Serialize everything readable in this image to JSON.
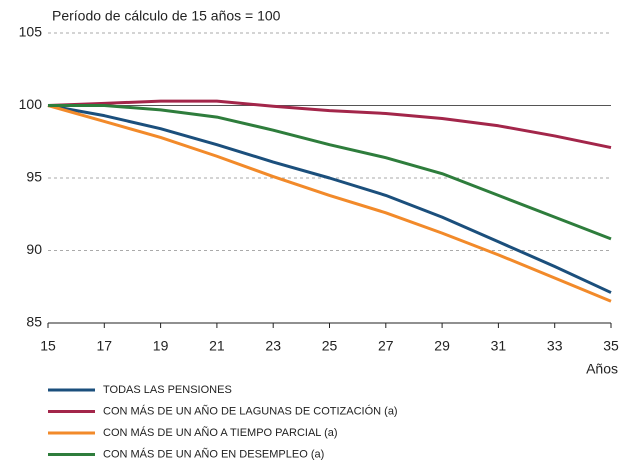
{
  "chart_data": {
    "type": "line",
    "subtitle": "Período de cálculo de 15 años = 100",
    "x_label": "Años",
    "x": [
      15,
      17,
      19,
      21,
      23,
      25,
      27,
      29,
      31,
      33,
      35
    ],
    "series": [
      {
        "name": "TODAS LAS PENSIONES",
        "color": "#1b4f7c",
        "values": [
          100,
          99.3,
          98.4,
          97.3,
          96.1,
          95.0,
          93.8,
          92.3,
          90.6,
          88.9,
          87.1
        ]
      },
      {
        "name": "CON MÁS DE UN AÑO DE LAGUNAS DE COTIZACIÓN (a)",
        "color": "#a3264a",
        "values": [
          100,
          100.15,
          100.3,
          100.3,
          99.95,
          99.65,
          99.45,
          99.1,
          98.6,
          97.9,
          97.1
        ]
      },
      {
        "name": "CON MÁS DE UN AÑO A TIEMPO PARCIAL (a)",
        "color": "#f28a2a",
        "values": [
          100,
          98.9,
          97.8,
          96.5,
          95.1,
          93.8,
          92.6,
          91.2,
          89.7,
          88.1,
          86.5
        ]
      },
      {
        "name": "CON MÁS DE UN AÑO EN DESEMPLEO (a)",
        "color": "#2e7d3c",
        "values": [
          100,
          100.0,
          99.7,
          99.2,
          98.3,
          97.3,
          96.4,
          95.3,
          93.8,
          92.3,
          90.8
        ]
      }
    ],
    "xlim": [
      15,
      35
    ],
    "xticks": [
      15,
      17,
      19,
      21,
      23,
      25,
      27,
      29,
      31,
      33,
      35
    ],
    "ylim": [
      85,
      105
    ],
    "yticks": [
      85,
      90,
      95,
      100,
      105
    ],
    "baseline": 100,
    "grid": true
  }
}
